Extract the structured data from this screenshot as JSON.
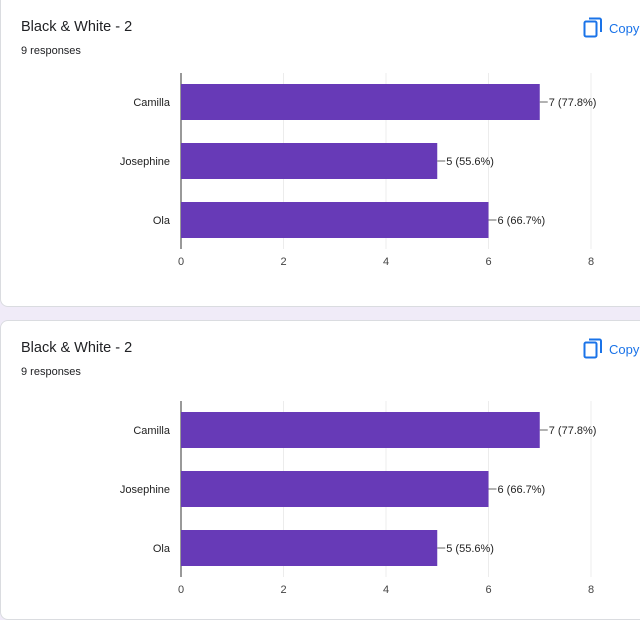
{
  "cards": [
    {
      "title": "Black & White - 2",
      "responses": "9 responses",
      "copy_label": "Copy",
      "copy_icon": "copy-icon"
    },
    {
      "title": "Black & White - 2",
      "responses": "9 responses",
      "copy_label": "Copy",
      "copy_icon": "copy-icon"
    }
  ],
  "colors": {
    "bar": "#673ab7",
    "accent": "#1a73e8",
    "background": "#f0ebf8"
  },
  "chart_data": [
    {
      "type": "bar",
      "orientation": "horizontal",
      "categories": [
        "Camilla",
        "Josephine",
        "Ola"
      ],
      "values": [
        7,
        5,
        6
      ],
      "labels": [
        "7 (77.8%)",
        "5 (55.6%)",
        "6 (66.7%)"
      ],
      "xlim": [
        0,
        8
      ],
      "xticks": [
        "0",
        "2",
        "4",
        "6",
        "8"
      ],
      "grid": true
    },
    {
      "type": "bar",
      "orientation": "horizontal",
      "categories": [
        "Camilla",
        "Josephine",
        "Ola"
      ],
      "values": [
        7,
        6,
        5
      ],
      "labels": [
        "7 (77.8%)",
        "6 (66.7%)",
        "5 (55.6%)"
      ],
      "xlim": [
        0,
        8
      ],
      "xticks": [
        "0",
        "2",
        "4",
        "6",
        "8"
      ],
      "grid": true
    }
  ]
}
